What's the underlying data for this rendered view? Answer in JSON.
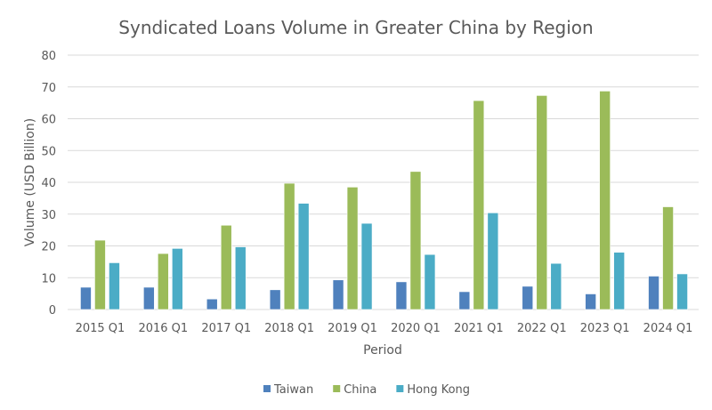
{
  "chart_data": {
    "type": "bar",
    "title": "Syndicated Loans Volume in Greater China by Region",
    "xlabel": "Period",
    "ylabel": "Volume (USD Billion)",
    "ylim": [
      0,
      80
    ],
    "yticks": [
      0,
      10,
      20,
      30,
      40,
      50,
      60,
      70,
      80
    ],
    "grid": true,
    "legend_position": "bottom",
    "categories": [
      "2015 Q1",
      "2016 Q1",
      "2017 Q1",
      "2018 Q1",
      "2019 Q1",
      "2020 Q1",
      "2021 Q1",
      "2022 Q1",
      "2023 Q1",
      "2024 Q1"
    ],
    "series": [
      {
        "name": "Taiwan",
        "color": "#4F81BD",
        "values": [
          7.0,
          7.0,
          3.3,
          6.2,
          9.3,
          8.7,
          5.6,
          7.3,
          4.9,
          10.5
        ]
      },
      {
        "name": "China",
        "color": "#9BBB59",
        "values": [
          21.8,
          17.6,
          26.5,
          39.7,
          38.5,
          43.4,
          65.7,
          67.3,
          68.7,
          32.3
        ]
      },
      {
        "name": "Hong Kong",
        "color": "#4BACC6",
        "values": [
          14.7,
          19.2,
          19.7,
          33.4,
          27.1,
          17.3,
          30.4,
          14.5,
          18.0,
          11.2
        ]
      }
    ]
  }
}
